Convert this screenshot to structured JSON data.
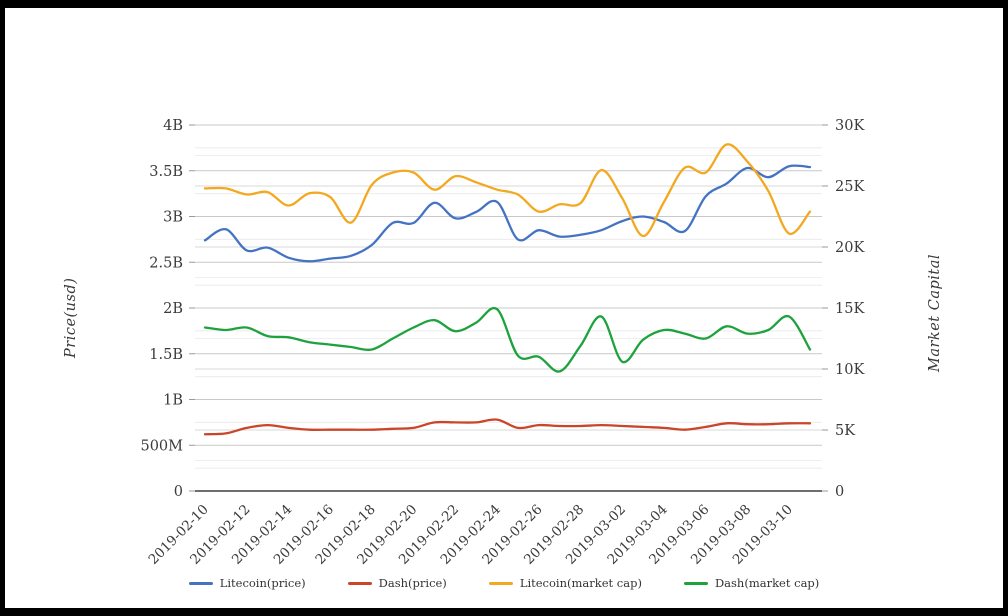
{
  "chart": {
    "left_axis": {
      "title": "Price(usd)",
      "unit": "B",
      "max": 4,
      "ticks": [
        "0",
        "500M",
        "1B",
        "1.5B",
        "2B",
        "2.5B",
        "3B",
        "3.5B",
        "4B"
      ]
    },
    "right_axis": {
      "title": "Market Capital",
      "unit": "K",
      "max": 30,
      "ticks": [
        "0",
        "5K",
        "10K",
        "15K",
        "20K",
        "25K",
        "30K"
      ]
    },
    "x_axis": {
      "tick_labels": [
        "2019-02-10",
        "2019-02-12",
        "2019-02-14",
        "2019-02-16",
        "2019-02-18",
        "2019-02-20",
        "2019-02-22",
        "2019-02-24",
        "2019-02-26",
        "2019-02-28",
        "2019-03-02",
        "2019-03-04",
        "2019-03-06",
        "2019-03-08",
        "2019-03-10"
      ]
    },
    "colors": {
      "grid_major": "#c9c9c9",
      "grid_minor": "#ebebeb",
      "grid_right_major": "#d9d9d9",
      "grid_right_minor": "#efefef",
      "axis_line": "#3f3f3f",
      "text": "#3b3b3b"
    }
  },
  "chart_data": {
    "type": "line",
    "smooth": true,
    "legend_position": "bottom",
    "x": [
      "2019-02-10",
      "2019-02-11",
      "2019-02-12",
      "2019-02-13",
      "2019-02-14",
      "2019-02-15",
      "2019-02-16",
      "2019-02-17",
      "2019-02-18",
      "2019-02-19",
      "2019-02-20",
      "2019-02-21",
      "2019-02-22",
      "2019-02-23",
      "2019-02-24",
      "2019-02-25",
      "2019-02-26",
      "2019-02-27",
      "2019-02-28",
      "2019-03-01",
      "2019-03-02",
      "2019-03-03",
      "2019-03-04",
      "2019-03-05",
      "2019-03-06",
      "2019-03-07",
      "2019-03-08",
      "2019-03-09",
      "2019-03-10",
      "2019-03-11"
    ],
    "ylim_left_billions": [
      0,
      4
    ],
    "ylim_right_thousands": [
      0,
      30
    ],
    "series": [
      {
        "name": "Litecoin(price)",
        "color": "#4573c4",
        "axis": "left",
        "unit": "B",
        "values": [
          2.74,
          2.86,
          2.63,
          2.66,
          2.55,
          2.51,
          2.54,
          2.57,
          2.69,
          2.93,
          2.93,
          3.15,
          2.98,
          3.05,
          3.16,
          2.75,
          2.85,
          2.78,
          2.8,
          2.85,
          2.95,
          3.0,
          2.94,
          2.84,
          3.22,
          3.36,
          3.53,
          3.43,
          3.55,
          3.54
        ]
      },
      {
        "name": "Dash(price)",
        "color": "#cb4529",
        "axis": "left",
        "unit": "B",
        "values": [
          0.62,
          0.63,
          0.69,
          0.72,
          0.69,
          0.67,
          0.67,
          0.67,
          0.67,
          0.68,
          0.69,
          0.75,
          0.75,
          0.75,
          0.78,
          0.69,
          0.72,
          0.71,
          0.71,
          0.72,
          0.71,
          0.7,
          0.69,
          0.67,
          0.7,
          0.74,
          0.73,
          0.73,
          0.74,
          0.74
        ]
      },
      {
        "name": "Litecoin(market cap)",
        "color": "#f3a81f",
        "axis": "right",
        "unit": "K",
        "values": [
          24.8,
          24.8,
          24.3,
          24.5,
          23.4,
          24.4,
          24.1,
          22.0,
          25.1,
          26.1,
          26.1,
          24.7,
          25.8,
          25.3,
          24.7,
          24.3,
          22.9,
          23.5,
          23.6,
          26.3,
          24.0,
          20.9,
          23.7,
          26.5,
          26.1,
          28.4,
          27.0,
          24.6,
          21.1,
          22.9
        ]
      },
      {
        "name": "Dash(market cap)",
        "color": "#1ea23e",
        "axis": "right",
        "unit": "K",
        "values": [
          13.4,
          13.2,
          13.4,
          12.7,
          12.6,
          12.2,
          12.0,
          11.8,
          11.6,
          12.5,
          13.4,
          14.0,
          13.1,
          13.8,
          14.9,
          11.1,
          11.0,
          9.8,
          11.9,
          14.3,
          10.6,
          12.4,
          13.2,
          12.9,
          12.5,
          13.5,
          12.9,
          13.2,
          14.3,
          11.6
        ]
      }
    ]
  }
}
